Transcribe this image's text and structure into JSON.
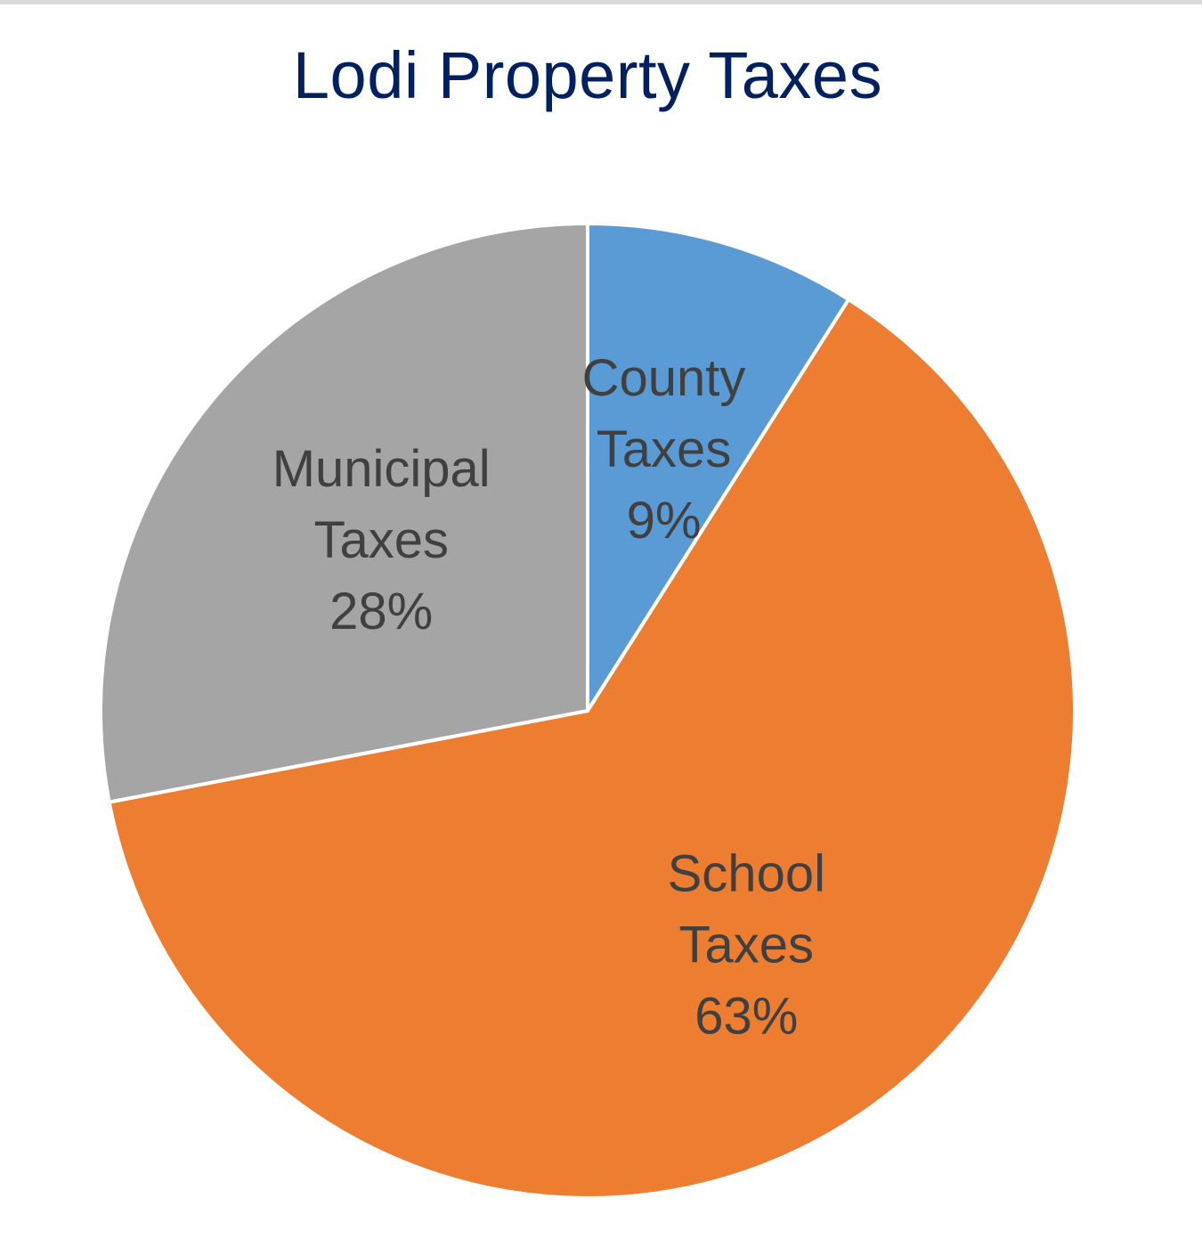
{
  "chart_data": {
    "type": "pie",
    "title": "Lodi Property Taxes",
    "slices": [
      {
        "label_lines": [
          "County",
          "Taxes"
        ],
        "value": 9,
        "value_label": "9%",
        "color": "#5b9bd5"
      },
      {
        "label_lines": [
          "School",
          "Taxes"
        ],
        "value": 63,
        "value_label": "63%",
        "color": "#ed7d31"
      },
      {
        "label_lines": [
          "Municipal",
          "Taxes"
        ],
        "value": 28,
        "value_label": "28%",
        "color": "#a5a5a5"
      }
    ],
    "start": "12 o'clock",
    "direction": "clockwise",
    "data_labels": "inside",
    "legend": "none"
  }
}
